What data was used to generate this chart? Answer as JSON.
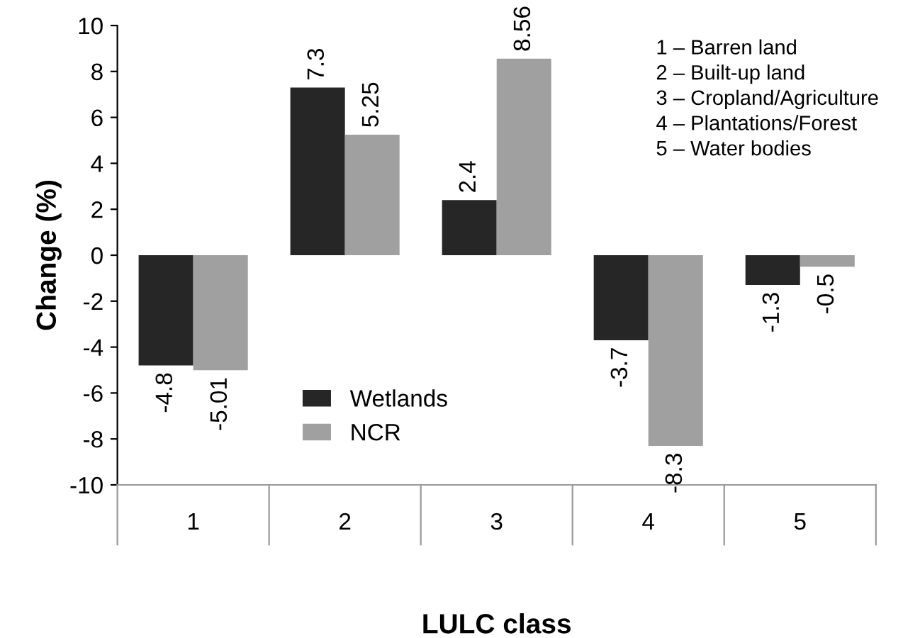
{
  "chart_data": {
    "type": "bar",
    "xlabel": "LULC class",
    "ylabel": "Change (%)",
    "categories": [
      "1",
      "2",
      "3",
      "4",
      "5"
    ],
    "series": [
      {
        "name": "Wetlands",
        "color": "#262626",
        "values": [
          -4.8,
          7.3,
          2.4,
          -3.7,
          -1.3
        ]
      },
      {
        "name": "NCR",
        "color": "#a0a0a0",
        "values": [
          -5.01,
          5.25,
          8.56,
          -8.3,
          -0.5
        ]
      }
    ],
    "ylim": [
      -10,
      10
    ],
    "yticks": [
      -10,
      -8,
      -6,
      -4,
      -2,
      0,
      2,
      4,
      6,
      8,
      10
    ],
    "data_labels": true,
    "legend": "bottom",
    "grid": false,
    "annotations": [
      "1 – Barren land",
      "2 – Built-up land",
      "3 – Cropland/Agriculture",
      "4 – Plantations/Forest",
      "5 – Water bodies"
    ]
  }
}
